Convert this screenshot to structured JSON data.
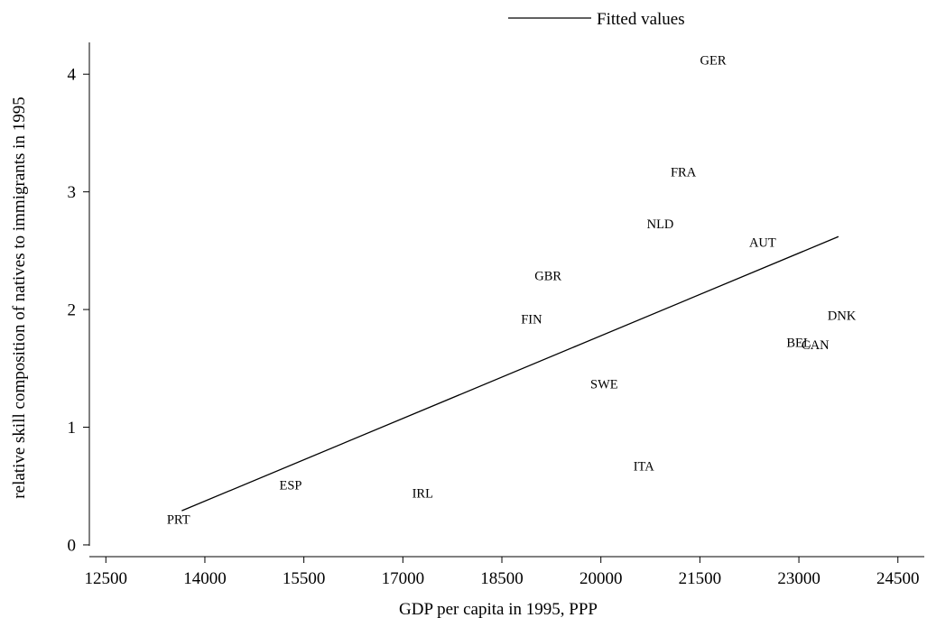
{
  "chart_data": {
    "type": "scatter",
    "xlabel": "GDP per capita in 1995, PPP",
    "ylabel": "relative skill composition of natives to immigrants in 1995",
    "xlim": [
      12250,
      24900
    ],
    "ylim": [
      -0.1,
      4.27
    ],
    "xticks": [
      12500,
      14000,
      15500,
      17000,
      18500,
      20000,
      21500,
      23000,
      24500
    ],
    "yticks": [
      0,
      1,
      2,
      3,
      4
    ],
    "grid": false,
    "legend": {
      "position": "top",
      "entries": [
        "Fitted values"
      ]
    },
    "points": [
      {
        "label": "GER",
        "x": 21700,
        "y": 4.12
      },
      {
        "label": "FRA",
        "x": 21250,
        "y": 3.17
      },
      {
        "label": "NLD",
        "x": 20900,
        "y": 2.73
      },
      {
        "label": "AUT",
        "x": 22450,
        "y": 2.57
      },
      {
        "label": "GBR",
        "x": 19200,
        "y": 2.29
      },
      {
        "label": "DNK",
        "x": 23650,
        "y": 1.95
      },
      {
        "label": "FIN",
        "x": 18950,
        "y": 1.92
      },
      {
        "label": "BEL",
        "x": 23000,
        "y": 1.72
      },
      {
        "label": "CAN",
        "x": 23250,
        "y": 1.7
      },
      {
        "label": "SWE",
        "x": 20050,
        "y": 1.37
      },
      {
        "label": "ITA",
        "x": 20650,
        "y": 0.67
      },
      {
        "label": "ESP",
        "x": 15300,
        "y": 0.51
      },
      {
        "label": "IRL",
        "x": 17300,
        "y": 0.44
      },
      {
        "label": "PRT",
        "x": 13600,
        "y": 0.22
      }
    ],
    "series": [
      {
        "name": "Fitted values",
        "type": "line",
        "x": [
          13650,
          23600
        ],
        "y": [
          0.29,
          2.62
        ]
      }
    ]
  }
}
